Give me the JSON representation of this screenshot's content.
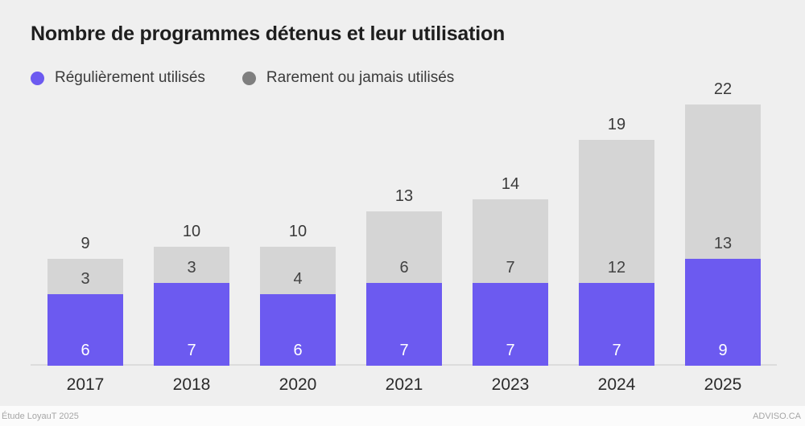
{
  "title": "Nombre de programmes détenus et leur utilisation",
  "legend": [
    {
      "label": "Régulièrement utilisés",
      "color": "#6C5AF0"
    },
    {
      "label": "Rarement ou jamais utilisés",
      "color": "#7F7F7F"
    }
  ],
  "footer": {
    "left": "Étude LoyauT 2025",
    "right": "ADVISO.CA"
  },
  "colors": {
    "background": "#EFEFEF",
    "bar_regular": "#6C5AF0",
    "bar_rare": "#D5D5D5",
    "axis_line": "#DCDCDC",
    "text_dark": "#1E1E1E"
  },
  "chart_data": {
    "type": "bar",
    "stacked": true,
    "title": "Nombre de programmes détenus et leur utilisation",
    "categories": [
      "2017",
      "2018",
      "2020",
      "2021",
      "2023",
      "2024",
      "2025"
    ],
    "series": [
      {
        "name": "Régulièrement utilisés",
        "color": "#6C5AF0",
        "values": [
          6,
          7,
          6,
          7,
          7,
          7,
          9
        ]
      },
      {
        "name": "Rarement ou jamais utilisés",
        "color": "#D5D5D5",
        "values": [
          3,
          3,
          4,
          6,
          7,
          12,
          13
        ]
      }
    ],
    "totals": [
      9,
      10,
      10,
      13,
      14,
      19,
      22
    ],
    "xlabel": "",
    "ylabel": "",
    "ylim": [
      0,
      22
    ],
    "grid": false,
    "legend_position": "top-left"
  }
}
